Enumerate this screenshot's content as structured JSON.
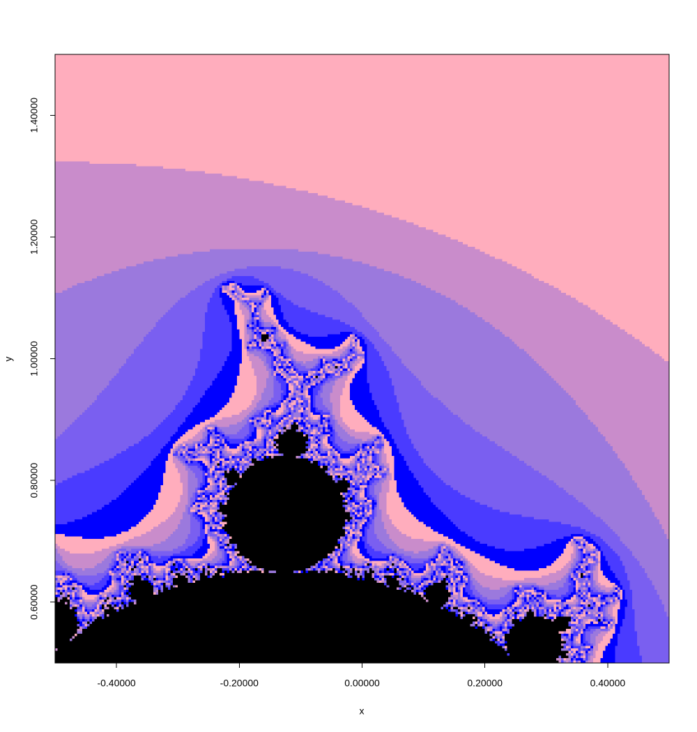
{
  "chart_data": {
    "type": "mandelbrot",
    "x_label": "x",
    "y_label": "y",
    "xlim": [
      -0.5,
      0.5
    ],
    "ylim": [
      0.5,
      1.5
    ],
    "xticks": [
      {
        "value": -0.4,
        "label": "-0.40000"
      },
      {
        "value": -0.2,
        "label": "-0.20000"
      },
      {
        "value": 0,
        "label": "0.00000"
      },
      {
        "value": 0.2,
        "label": "0.20000"
      },
      {
        "value": 0.4,
        "label": "0.40000"
      }
    ],
    "yticks": [
      {
        "value": 0.6,
        "label": "0.60000"
      },
      {
        "value": 0.8,
        "label": "0.80000"
      },
      {
        "value": 1.0,
        "label": "1.00000"
      },
      {
        "value": 1.2,
        "label": "1.20000"
      },
      {
        "value": 1.4,
        "label": "1.40000"
      }
    ],
    "colors": [
      "#ffadbd",
      "#c98ccb",
      "#9b79dd",
      "#7a5ff0",
      "#4a3bff",
      "#0000ff"
    ],
    "set_color": "#000000"
  }
}
